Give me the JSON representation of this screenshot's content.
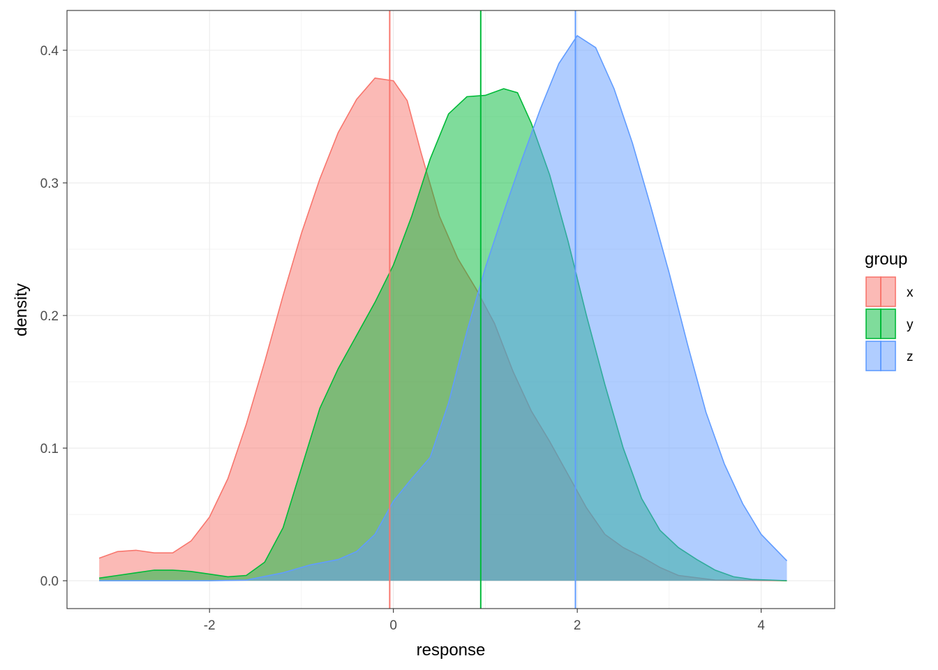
{
  "chart_data": {
    "type": "area",
    "chart_kind": "density",
    "xlabel": "response",
    "ylabel": "density",
    "xlim": [
      -3.55,
      4.8
    ],
    "ylim": [
      -0.021,
      0.43
    ],
    "x_ticks": [
      -2,
      0,
      2,
      4
    ],
    "x_tick_labels": [
      "-2",
      "0",
      "2",
      "4"
    ],
    "y_ticks": [
      0.0,
      0.1,
      0.2,
      0.3,
      0.4
    ],
    "y_tick_labels": [
      "0.0",
      "0.1",
      "0.2",
      "0.3",
      "0.4"
    ],
    "grid": true,
    "legend": {
      "title": "group",
      "position": "right"
    },
    "fill_opacity": 0.5,
    "series": [
      {
        "name": "x",
        "color": "#F8766D",
        "mean_line": -0.04,
        "points": [
          [
            -3.2,
            0.017
          ],
          [
            -3.0,
            0.022
          ],
          [
            -2.8,
            0.023
          ],
          [
            -2.6,
            0.021
          ],
          [
            -2.4,
            0.021
          ],
          [
            -2.2,
            0.03
          ],
          [
            -2.0,
            0.048
          ],
          [
            -1.8,
            0.077
          ],
          [
            -1.6,
            0.118
          ],
          [
            -1.4,
            0.165
          ],
          [
            -1.2,
            0.215
          ],
          [
            -1.0,
            0.262
          ],
          [
            -0.8,
            0.303
          ],
          [
            -0.6,
            0.338
          ],
          [
            -0.4,
            0.363
          ],
          [
            -0.2,
            0.379
          ],
          [
            0.0,
            0.377
          ],
          [
            0.15,
            0.362
          ],
          [
            0.3,
            0.323
          ],
          [
            0.5,
            0.275
          ],
          [
            0.7,
            0.243
          ],
          [
            0.9,
            0.22
          ],
          [
            1.1,
            0.194
          ],
          [
            1.3,
            0.158
          ],
          [
            1.5,
            0.128
          ],
          [
            1.7,
            0.105
          ],
          [
            1.9,
            0.08
          ],
          [
            2.1,
            0.055
          ],
          [
            2.3,
            0.035
          ],
          [
            2.5,
            0.025
          ],
          [
            2.7,
            0.018
          ],
          [
            2.9,
            0.01
          ],
          [
            3.1,
            0.004
          ],
          [
            3.5,
            0.0005
          ],
          [
            4.28,
            0.0
          ]
        ]
      },
      {
        "name": "y",
        "color": "#00BA38",
        "mean_line": 0.95,
        "points": [
          [
            -3.2,
            0.002
          ],
          [
            -3.0,
            0.004
          ],
          [
            -2.8,
            0.006
          ],
          [
            -2.6,
            0.008
          ],
          [
            -2.4,
            0.008
          ],
          [
            -2.2,
            0.007
          ],
          [
            -2.0,
            0.005
          ],
          [
            -1.8,
            0.003
          ],
          [
            -1.6,
            0.004
          ],
          [
            -1.4,
            0.014
          ],
          [
            -1.2,
            0.04
          ],
          [
            -1.0,
            0.085
          ],
          [
            -0.8,
            0.13
          ],
          [
            -0.6,
            0.16
          ],
          [
            -0.4,
            0.185
          ],
          [
            -0.2,
            0.21
          ],
          [
            0.0,
            0.238
          ],
          [
            0.2,
            0.275
          ],
          [
            0.4,
            0.318
          ],
          [
            0.6,
            0.352
          ],
          [
            0.8,
            0.365
          ],
          [
            1.0,
            0.366
          ],
          [
            1.2,
            0.371
          ],
          [
            1.35,
            0.368
          ],
          [
            1.5,
            0.345
          ],
          [
            1.7,
            0.306
          ],
          [
            1.9,
            0.256
          ],
          [
            2.1,
            0.2
          ],
          [
            2.3,
            0.148
          ],
          [
            2.5,
            0.1
          ],
          [
            2.7,
            0.062
          ],
          [
            2.9,
            0.038
          ],
          [
            3.1,
            0.025
          ],
          [
            3.3,
            0.016
          ],
          [
            3.5,
            0.008
          ],
          [
            3.7,
            0.003
          ],
          [
            3.9,
            0.001
          ],
          [
            4.28,
            0.0
          ]
        ]
      },
      {
        "name": "z",
        "color": "#619CFF",
        "mean_line": 1.98,
        "points": [
          [
            -3.2,
            0.0
          ],
          [
            -2.0,
            0.0
          ],
          [
            -1.6,
            0.0005
          ],
          [
            -1.2,
            0.006
          ],
          [
            -0.9,
            0.012
          ],
          [
            -0.6,
            0.016
          ],
          [
            -0.4,
            0.022
          ],
          [
            -0.2,
            0.035
          ],
          [
            0.0,
            0.06
          ],
          [
            0.2,
            0.077
          ],
          [
            0.4,
            0.093
          ],
          [
            0.6,
            0.134
          ],
          [
            0.8,
            0.188
          ],
          [
            1.0,
            0.236
          ],
          [
            1.2,
            0.278
          ],
          [
            1.4,
            0.318
          ],
          [
            1.6,
            0.356
          ],
          [
            1.8,
            0.39
          ],
          [
            2.0,
            0.411
          ],
          [
            2.2,
            0.402
          ],
          [
            2.4,
            0.371
          ],
          [
            2.6,
            0.33
          ],
          [
            2.8,
            0.282
          ],
          [
            3.0,
            0.232
          ],
          [
            3.2,
            0.178
          ],
          [
            3.4,
            0.127
          ],
          [
            3.6,
            0.088
          ],
          [
            3.8,
            0.058
          ],
          [
            4.0,
            0.035
          ],
          [
            4.28,
            0.015
          ]
        ]
      }
    ]
  }
}
